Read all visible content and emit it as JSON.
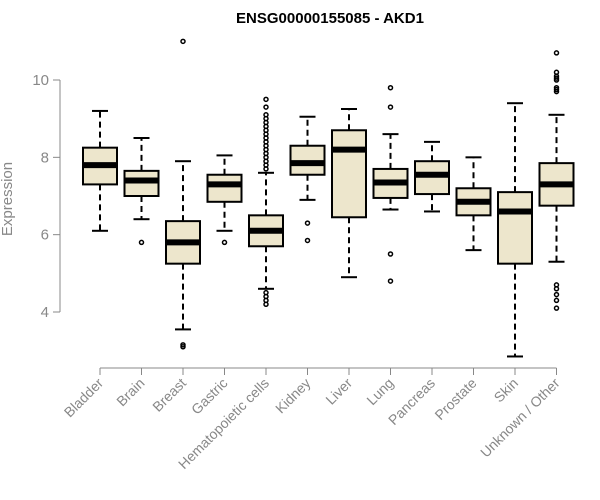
{
  "chart_data": {
    "type": "boxplot",
    "title": "ENSG00000155085 - AKD1",
    "xlabel": "",
    "ylabel": "Expression",
    "ylim": [
      2.7,
      11.2
    ],
    "yticks": [
      4,
      6,
      8,
      10
    ],
    "box_color": "#ede6cc",
    "axis_color": "#888888",
    "categories": [
      "Bladder",
      "Brain",
      "Breast",
      "Gastric",
      "Hematopoietic cells",
      "Kidney",
      "Liver",
      "Lung",
      "Pancreas",
      "Prostate",
      "Skin",
      "Unknown / Other"
    ],
    "boxes": [
      {
        "label": "Bladder",
        "whisker_low": 6.1,
        "q1": 7.3,
        "median": 7.8,
        "q3": 8.25,
        "whisker_high": 9.2,
        "outliers": []
      },
      {
        "label": "Brain",
        "whisker_low": 6.4,
        "q1": 7.0,
        "median": 7.4,
        "q3": 7.65,
        "whisker_high": 8.5,
        "outliers": [
          5.8
        ]
      },
      {
        "label": "Breast",
        "whisker_low": 3.55,
        "q1": 5.25,
        "median": 5.8,
        "q3": 6.35,
        "whisker_high": 7.9,
        "outliers": [
          3.1,
          3.15,
          11.0
        ]
      },
      {
        "label": "Gastric",
        "whisker_low": 6.1,
        "q1": 6.85,
        "median": 7.3,
        "q3": 7.55,
        "whisker_high": 8.05,
        "outliers": [
          5.8
        ]
      },
      {
        "label": "Hematopoietic cells",
        "whisker_low": 4.6,
        "q1": 5.7,
        "median": 6.1,
        "q3": 6.5,
        "whisker_high": 7.6,
        "outliers": [
          4.2,
          4.3,
          4.4,
          4.5,
          7.7,
          7.8,
          7.9,
          8.0,
          8.1,
          8.2,
          8.3,
          8.4,
          8.5,
          8.6,
          8.7,
          8.8,
          8.9,
          9.0,
          9.1,
          9.3,
          9.5
        ]
      },
      {
        "label": "Kidney",
        "whisker_low": 6.9,
        "q1": 7.55,
        "median": 7.85,
        "q3": 8.3,
        "whisker_high": 9.05,
        "outliers": [
          5.85,
          6.3
        ]
      },
      {
        "label": "Liver",
        "whisker_low": 4.9,
        "q1": 6.45,
        "median": 8.2,
        "q3": 8.7,
        "whisker_high": 9.25,
        "outliers": []
      },
      {
        "label": "Lung",
        "whisker_low": 6.65,
        "q1": 6.95,
        "median": 7.35,
        "q3": 7.7,
        "whisker_high": 8.6,
        "outliers": [
          4.8,
          5.5,
          9.3,
          9.8
        ]
      },
      {
        "label": "Pancreas",
        "whisker_low": 6.6,
        "q1": 7.05,
        "median": 7.55,
        "q3": 7.9,
        "whisker_high": 8.4,
        "outliers": []
      },
      {
        "label": "Prostate",
        "whisker_low": 5.6,
        "q1": 6.5,
        "median": 6.85,
        "q3": 7.2,
        "whisker_high": 8.0,
        "outliers": []
      },
      {
        "label": "Skin",
        "whisker_low": 2.85,
        "q1": 5.25,
        "median": 6.6,
        "q3": 7.1,
        "whisker_high": 9.4,
        "outliers": []
      },
      {
        "label": "Unknown / Other",
        "whisker_low": 5.3,
        "q1": 6.75,
        "median": 7.3,
        "q3": 7.85,
        "whisker_high": 9.1,
        "outliers": [
          4.1,
          4.3,
          4.45,
          4.6,
          4.7,
          9.7,
          9.75,
          9.8,
          10.0,
          10.05,
          10.1,
          10.2,
          10.7
        ]
      }
    ]
  }
}
